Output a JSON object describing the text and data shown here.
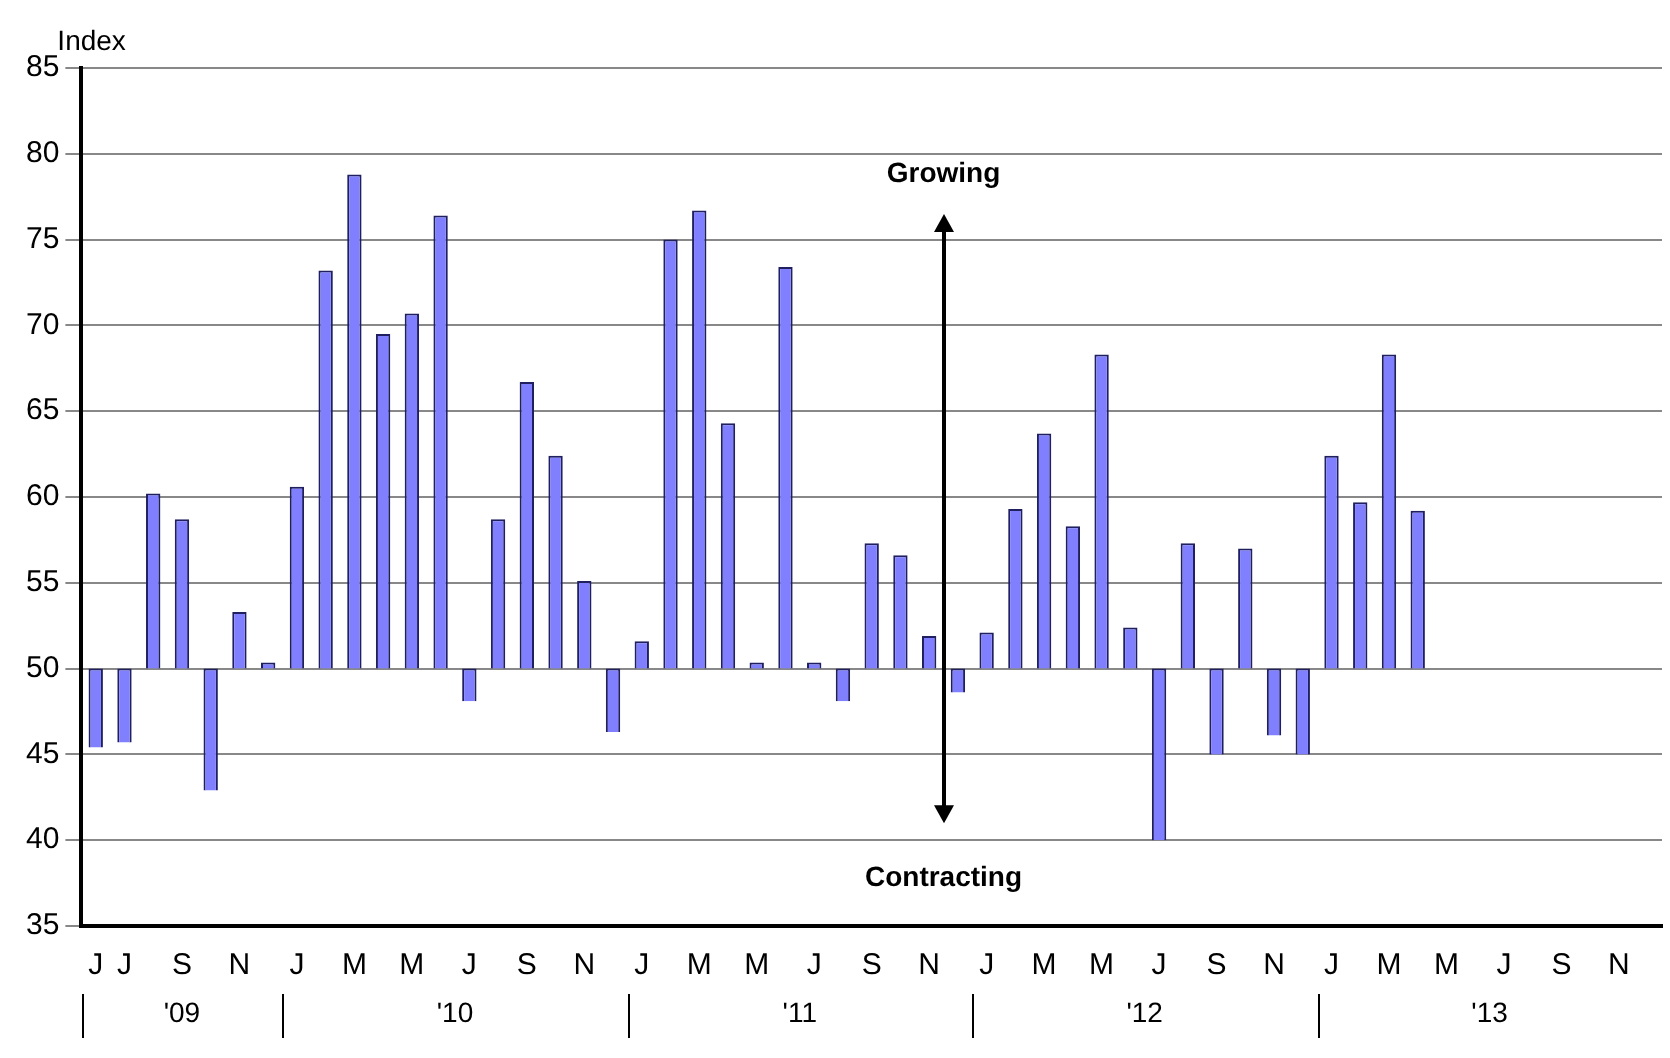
{
  "chart_data": {
    "type": "bar",
    "ylabel": "Index",
    "categories": [
      "J",
      "J",
      null,
      "S",
      null,
      "N",
      null,
      "J",
      null,
      "M",
      null,
      "M",
      null,
      "J",
      null,
      "S",
      null,
      "N",
      null,
      "J",
      null,
      "M",
      null,
      "M",
      null,
      "J",
      null,
      "S",
      null,
      "N",
      null,
      "J",
      null,
      "M",
      null,
      "M",
      null,
      "J",
      null,
      "S",
      null,
      "N",
      null,
      "J",
      null,
      "M",
      null,
      "M",
      null,
      "J",
      null,
      "S",
      null,
      "N",
      null
    ],
    "base": [
      50,
      50,
      50,
      50,
      50,
      50,
      50,
      50,
      50,
      50,
      50,
      50,
      50,
      50,
      50,
      50,
      50,
      50,
      50,
      50,
      50,
      50,
      50,
      50,
      50,
      50,
      50,
      50,
      50,
      50,
      50,
      50,
      50,
      50,
      50,
      50,
      50,
      50,
      50,
      50,
      50,
      50,
      50,
      50,
      50,
      50,
      50,
      null,
      null,
      null,
      null,
      null,
      null,
      null,
      null
    ],
    "values": [
      -4.6,
      -4.3,
      10.2,
      8.7,
      -7.1,
      3.3,
      0,
      10.6,
      23.2,
      28.8,
      19.5,
      20.7,
      26.4,
      -1.9,
      8.7,
      16.7,
      12.4,
      5.1,
      -3.7,
      1.6,
      25,
      26.7,
      14.3,
      0,
      23.4,
      0,
      -1.9,
      7.3,
      6.6,
      1.9,
      -1.4,
      2.1,
      9.3,
      13.7,
      8.3,
      18.3,
      2.4,
      -10,
      7.3,
      -5,
      7,
      -3.9,
      -5,
      12.4,
      9.7,
      18.3,
      9.2,
      null,
      null,
      null,
      null,
      null,
      null,
      null,
      null
    ],
    "color": "#8080ff",
    "ylim": [
      35,
      85
    ],
    "yticks": [
      35,
      40,
      45,
      50,
      55,
      60,
      65,
      70,
      75,
      80,
      85
    ],
    "grid": "y",
    "legend": false,
    "annotations": [
      "'09",
      "'10",
      "'11",
      "'12",
      "'13",
      "Growing",
      "Contracting"
    ]
  }
}
